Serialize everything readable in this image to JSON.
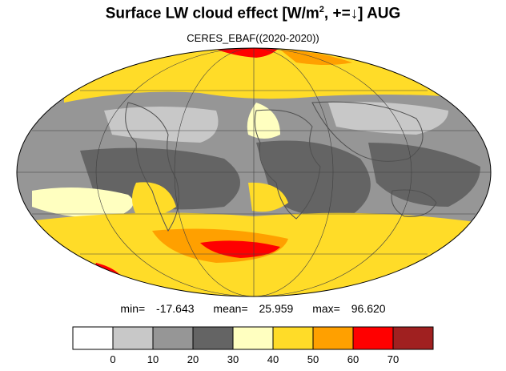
{
  "title": {
    "prefix": "Surface LW cloud effect [W/m",
    "superscript": "2",
    "suffix": ", +=↓]  AUG"
  },
  "subtitle": "CERES_EBAF((2020-2020))",
  "stats": {
    "min_label": "min=",
    "min": "-17.643",
    "mean_label": "mean=",
    "mean": "25.959",
    "max_label": "max=",
    "max": "96.620"
  },
  "colorbar": {
    "colors": [
      "#ffffff",
      "#c8c8c8",
      "#969696",
      "#646464",
      "#ffffc0",
      "#ffdc28",
      "#ffa000",
      "#ff0000",
      "#a02020"
    ],
    "ticks": [
      "0",
      "10",
      "20",
      "30",
      "40",
      "50",
      "60",
      "70"
    ]
  },
  "map_colors": {
    "ocean_base": "#969696",
    "outline": "#505050",
    "grid": "#404040"
  }
}
